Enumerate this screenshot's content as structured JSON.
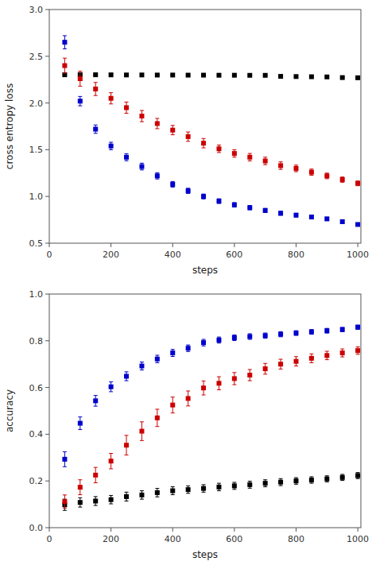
{
  "chart_data": [
    {
      "type": "scatter",
      "marker": "square",
      "xlabel": "steps",
      "ylabel": "cross entropy loss",
      "x": [
        50,
        100,
        150,
        200,
        250,
        300,
        350,
        400,
        450,
        500,
        550,
        600,
        650,
        700,
        750,
        800,
        850,
        900,
        950,
        1000
      ],
      "xlim": [
        0,
        1010
      ],
      "ylim": [
        0.5,
        3.0
      ],
      "xticks": [
        0,
        200,
        400,
        600,
        800,
        1000
      ],
      "yticks": [
        0.5,
        {
          "value": 1.0,
          "label": "1.0"
        },
        1.5,
        {
          "value": 2.0,
          "label": "2.0"
        },
        2.5,
        {
          "value": 3.0,
          "label": "3.0"
        }
      ],
      "grid": false,
      "series": [
        {
          "color": "#000000",
          "values": [
            2.302,
            2.303,
            2.302,
            2.301,
            2.3,
            2.3,
            2.299,
            2.299,
            2.298,
            2.298,
            2.297,
            2.297,
            2.296,
            2.296,
            2.285,
            2.283,
            2.281,
            2.279,
            2.272,
            2.27
          ],
          "errors": [
            0.005,
            0.004,
            0.004,
            0.004,
            0.004,
            0.004,
            0.004,
            0.003,
            0.003,
            0.003,
            0.003,
            0.003,
            0.003,
            0.003,
            0.003,
            0.003,
            0.003,
            0.003,
            0.003,
            0.003
          ]
        },
        {
          "color": "#cc0000",
          "values": [
            2.4,
            2.26,
            2.15,
            2.05,
            1.95,
            1.86,
            1.78,
            1.71,
            1.64,
            1.57,
            1.51,
            1.46,
            1.42,
            1.38,
            1.33,
            1.3,
            1.26,
            1.22,
            1.18,
            1.14
          ],
          "errors": [
            0.08,
            0.08,
            0.07,
            0.06,
            0.06,
            0.06,
            0.055,
            0.05,
            0.05,
            0.05,
            0.04,
            0.04,
            0.04,
            0.04,
            0.04,
            0.035,
            0.033,
            0.03,
            0.028,
            0.025
          ]
        },
        {
          "color": "#0000cc",
          "values": [
            2.65,
            2.02,
            1.72,
            1.54,
            1.42,
            1.32,
            1.22,
            1.13,
            1.06,
            1.0,
            0.95,
            0.91,
            0.88,
            0.85,
            0.82,
            0.8,
            0.78,
            0.76,
            0.73,
            0.7
          ],
          "errors": [
            0.07,
            0.05,
            0.045,
            0.04,
            0.038,
            0.036,
            0.033,
            0.03,
            0.028,
            0.026,
            0.025,
            0.024,
            0.023,
            0.022,
            0.021,
            0.02,
            0.019,
            0.018,
            0.017,
            0.016
          ]
        }
      ]
    },
    {
      "type": "scatter",
      "marker": "square",
      "xlabel": "steps",
      "ylabel": "accuracy",
      "x": [
        50,
        100,
        150,
        200,
        250,
        300,
        350,
        400,
        450,
        500,
        550,
        600,
        650,
        700,
        750,
        800,
        850,
        900,
        950,
        1000
      ],
      "xlim": [
        0,
        1010
      ],
      "ylim": [
        0.0,
        1.0
      ],
      "xticks": [
        0,
        200,
        400,
        600,
        800,
        1000
      ],
      "yticks": [
        {
          "value": 0.0,
          "label": "0.0"
        },
        0.2,
        0.4,
        0.6,
        0.8,
        {
          "value": 1.0,
          "label": "1.0"
        }
      ],
      "grid": false,
      "series": [
        {
          "color": "#000000",
          "values": [
            0.098,
            0.108,
            0.114,
            0.12,
            0.133,
            0.14,
            0.15,
            0.158,
            0.163,
            0.168,
            0.174,
            0.179,
            0.184,
            0.19,
            0.195,
            0.2,
            0.204,
            0.209,
            0.215,
            0.223
          ],
          "errors": [
            0.024,
            0.02,
            0.019,
            0.018,
            0.019,
            0.018,
            0.018,
            0.017,
            0.016,
            0.016,
            0.016,
            0.015,
            0.015,
            0.015,
            0.015,
            0.014,
            0.014,
            0.013,
            0.013,
            0.013
          ]
        },
        {
          "color": "#cc0000",
          "values": [
            0.112,
            0.173,
            0.225,
            0.285,
            0.353,
            0.413,
            0.47,
            0.525,
            0.553,
            0.598,
            0.618,
            0.638,
            0.653,
            0.68,
            0.7,
            0.712,
            0.725,
            0.737,
            0.748,
            0.758
          ],
          "errors": [
            0.028,
            0.032,
            0.033,
            0.033,
            0.042,
            0.04,
            0.037,
            0.034,
            0.032,
            0.03,
            0.028,
            0.026,
            0.024,
            0.023,
            0.021,
            0.02,
            0.019,
            0.018,
            0.017,
            0.016
          ]
        },
        {
          "color": "#0000cc",
          "values": [
            0.293,
            0.447,
            0.543,
            0.603,
            0.648,
            0.692,
            0.722,
            0.748,
            0.768,
            0.792,
            0.803,
            0.813,
            0.818,
            0.822,
            0.828,
            0.833,
            0.838,
            0.843,
            0.848,
            0.858
          ],
          "errors": [
            0.032,
            0.027,
            0.023,
            0.021,
            0.019,
            0.017,
            0.016,
            0.015,
            0.014,
            0.014,
            0.013,
            0.012,
            0.012,
            0.011,
            0.011,
            0.01,
            0.01,
            0.01,
            0.009,
            0.009
          ]
        }
      ]
    }
  ]
}
